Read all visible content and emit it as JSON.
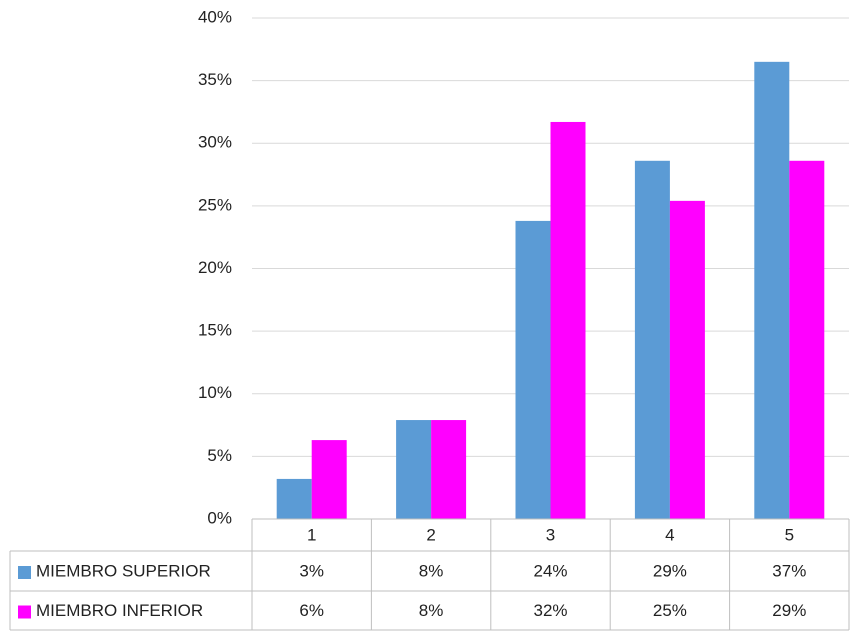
{
  "chart_data": {
    "type": "bar",
    "categories": [
      "1",
      "2",
      "3",
      "4",
      "5"
    ],
    "series": [
      {
        "name": "MIEMBRO SUPERIOR",
        "color": "#5b9bd5",
        "values": [
          3.2,
          7.9,
          23.8,
          28.6,
          36.5
        ],
        "value_labels": [
          "3%",
          "8%",
          "24%",
          "29%",
          "37%"
        ]
      },
      {
        "name": "MIEMBRO INFERIOR",
        "color": "#ff00ff",
        "values": [
          6.3,
          7.9,
          31.7,
          25.4,
          28.6
        ],
        "value_labels": [
          "6%",
          "8%",
          "32%",
          "25%",
          "29%"
        ]
      }
    ],
    "ylim": [
      0,
      40
    ],
    "yticks": [
      {
        "value": 0,
        "label": "0%"
      },
      {
        "value": 5,
        "label": "5%"
      },
      {
        "value": 10,
        "label": "10%"
      },
      {
        "value": 15,
        "label": "15%"
      },
      {
        "value": 20,
        "label": "20%"
      },
      {
        "value": 25,
        "label": "25%"
      },
      {
        "value": 30,
        "label": "30%"
      },
      {
        "value": 35,
        "label": "35%"
      },
      {
        "value": 40,
        "label": "40%"
      }
    ],
    "grid": true,
    "legend": "table"
  }
}
